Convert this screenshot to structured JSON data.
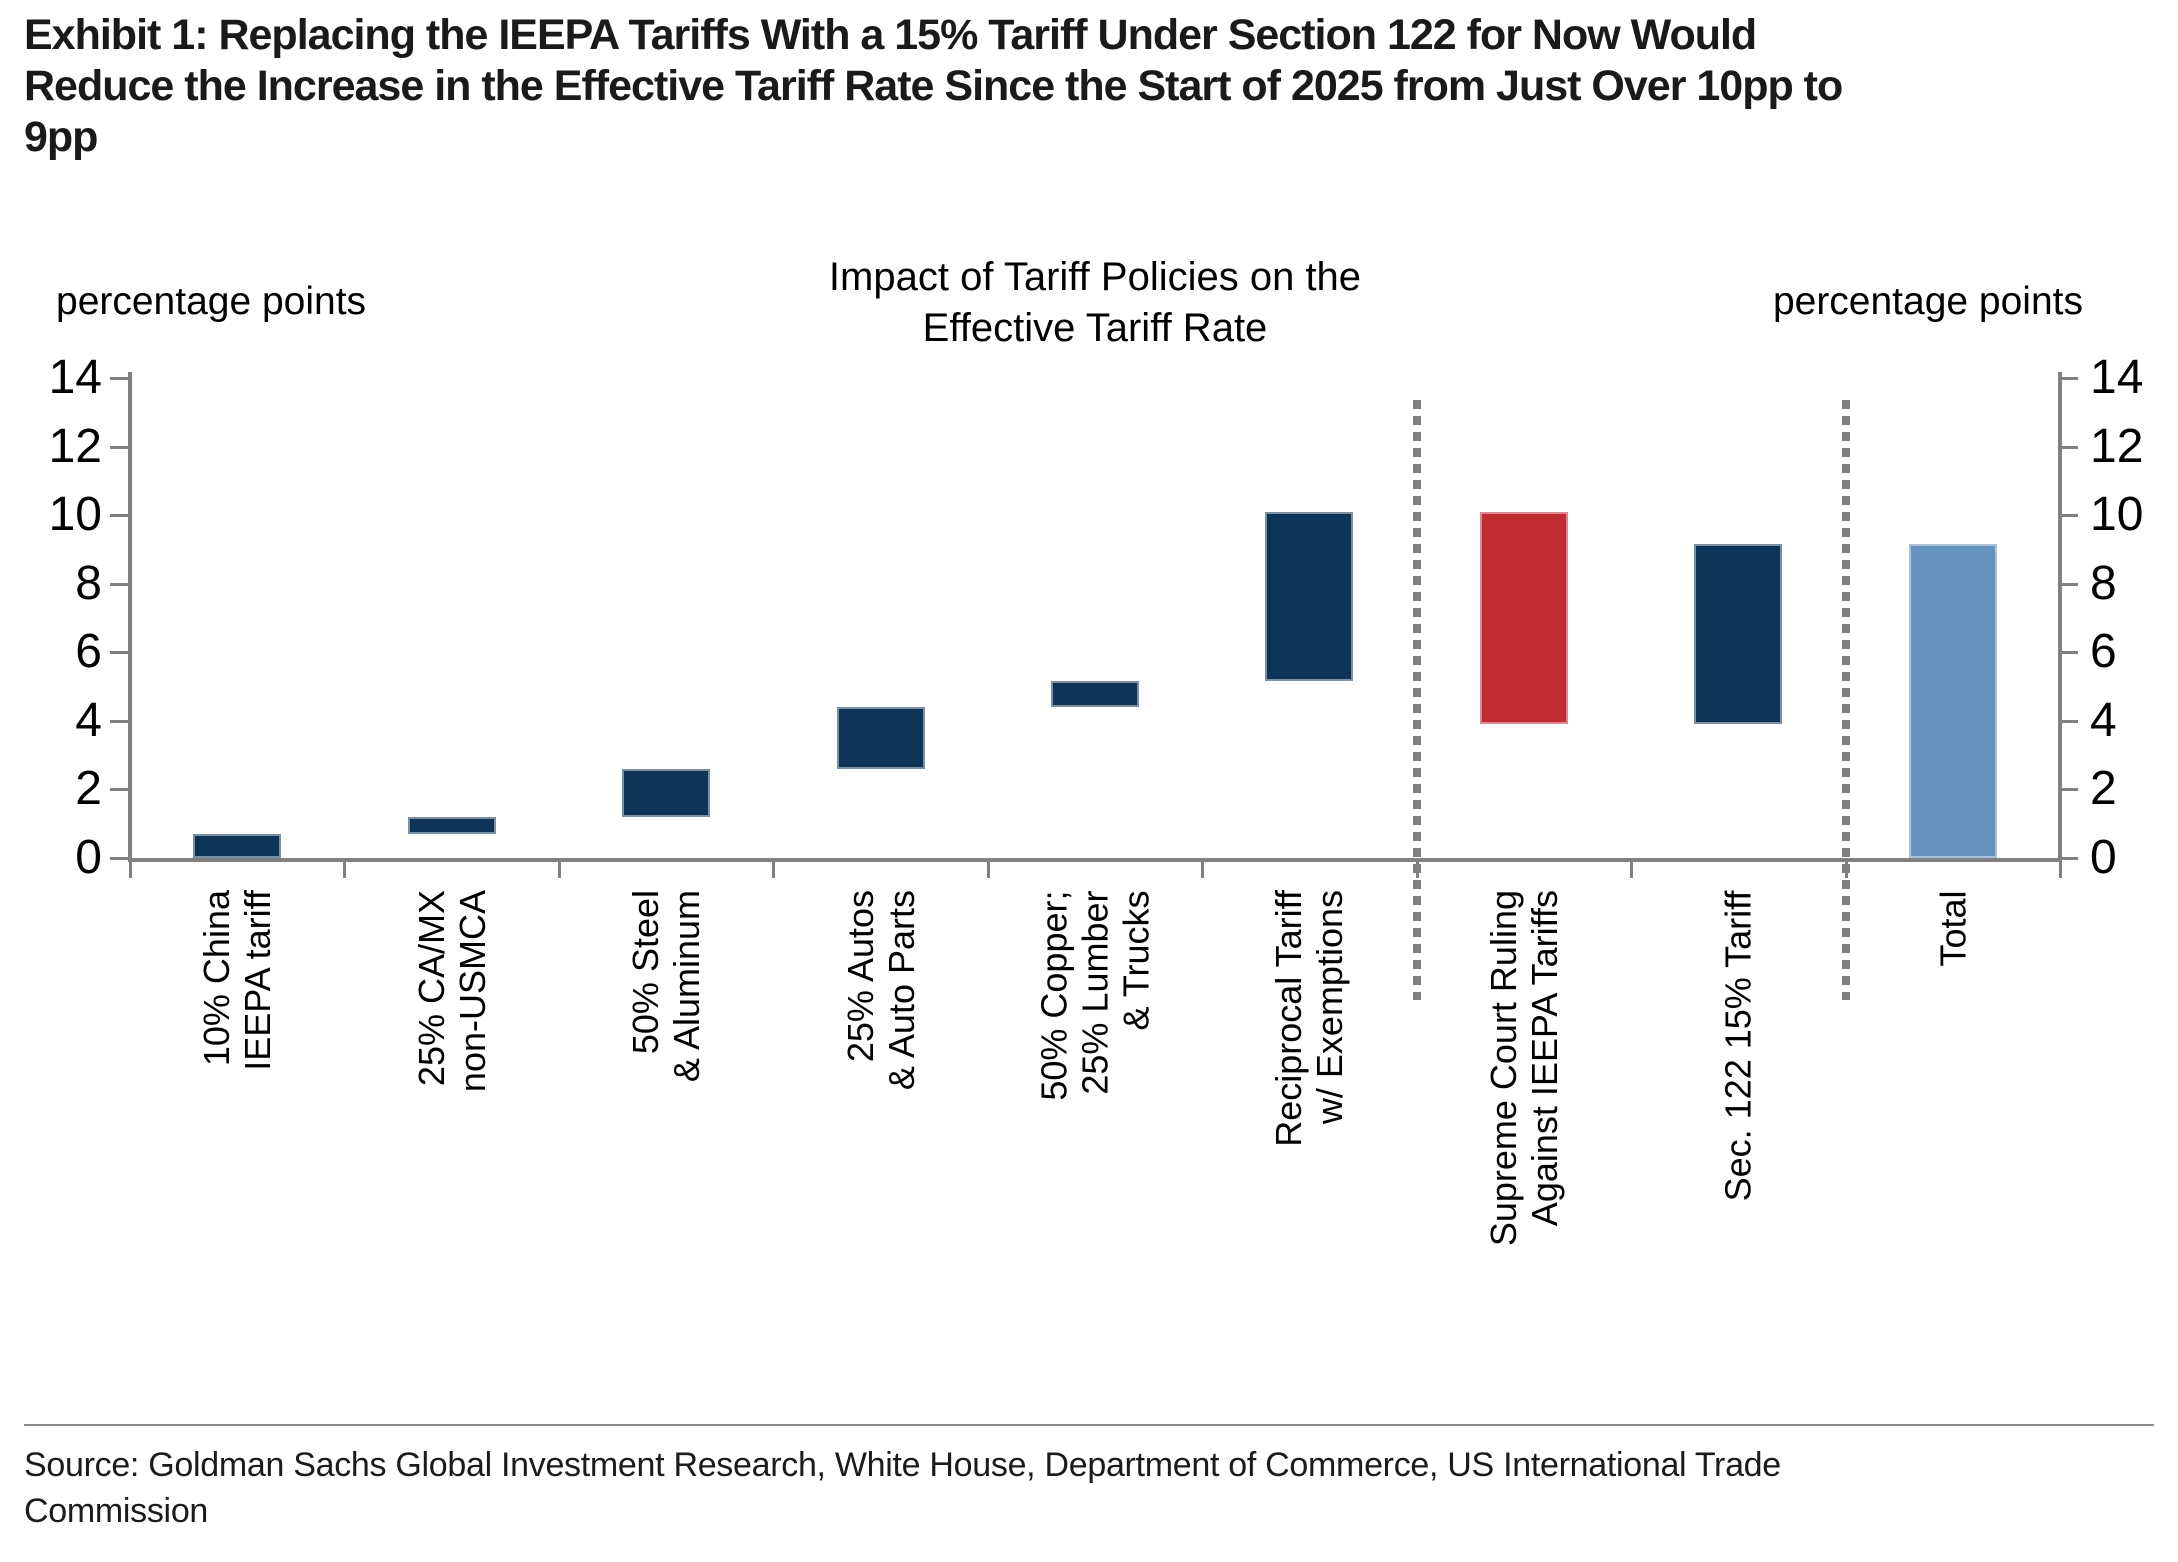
{
  "exhibit": {
    "title_lines": [
      "Exhibit 1: Replacing the IEEPA Tariffs With a 15% Tariff Under Section 122 for Now Would",
      "Reduce the Increase in the Effective Tariff Rate Since the Start of 2025 from Just Over 10pp to",
      "9pp"
    ]
  },
  "chart_data": {
    "type": "bar",
    "subtype": "waterfall",
    "title_lines": [
      "Impact of Tariff Policies on the",
      "Effective Tariff Rate"
    ],
    "left_axis_label": "percentage points",
    "right_axis_label": "percentage points",
    "ylim": [
      0,
      14
    ],
    "yticks": [
      0,
      2,
      4,
      6,
      8,
      10,
      12,
      14
    ],
    "grid": false,
    "colors": {
      "increase": "#0d3356",
      "decrease": "#bf2b30",
      "total": "#6591bf",
      "axis": "#808080",
      "separator": "#7f7f7f"
    },
    "separators_after": [
      5,
      7
    ],
    "bars": [
      {
        "label": "10% China IEEPA tariff",
        "label_lines": [
          "10% China",
          "IEEPA tariff"
        ],
        "from": 0,
        "to": 0.7,
        "role": "increase"
      },
      {
        "label": "25% CA/MX non-USMCA",
        "label_lines": [
          "25% CA/MX",
          "non-USMCA"
        ],
        "from": 0.7,
        "to": 1.2,
        "role": "increase"
      },
      {
        "label": "50% Steel & Aluminum",
        "label_lines": [
          "50% Steel",
          "& Aluminum"
        ],
        "from": 1.2,
        "to": 2.6,
        "role": "increase"
      },
      {
        "label": "25% Autos & Auto Parts",
        "label_lines": [
          "25% Autos",
          "& Auto Parts"
        ],
        "from": 2.6,
        "to": 4.4,
        "role": "increase"
      },
      {
        "label": "50% Copper; 25% Lumber & Trucks",
        "label_lines": [
          "50% Copper;",
          "25% Lumber",
          "& Trucks"
        ],
        "from": 4.4,
        "to": 5.15,
        "role": "increase"
      },
      {
        "label": "Reciprocal Tariff w/ Exemptions",
        "label_lines": [
          "Reciprocal Tariff",
          "w/ Exemptions"
        ],
        "from": 5.15,
        "to": 10.1,
        "role": "increase"
      },
      {
        "label": "Supreme Court Ruling Against IEEPA Tariffs",
        "label_lines": [
          "Supreme Court Ruling",
          "Against IEEPA Tariffs"
        ],
        "from": 10.1,
        "to": 3.9,
        "role": "decrease"
      },
      {
        "label": "Sec. 122 15% Tariff",
        "label_lines": [
          "Sec. 122 15% Tariff"
        ],
        "from": 3.9,
        "to": 9.15,
        "role": "increase"
      },
      {
        "label": "Total",
        "label_lines": [
          "Total"
        ],
        "from": 0,
        "to": 9.15,
        "role": "total"
      }
    ]
  },
  "source": {
    "lines": [
      "Source: Goldman Sachs Global Investment Research, White House, Department of Commerce, US International Trade",
      "Commission"
    ]
  }
}
